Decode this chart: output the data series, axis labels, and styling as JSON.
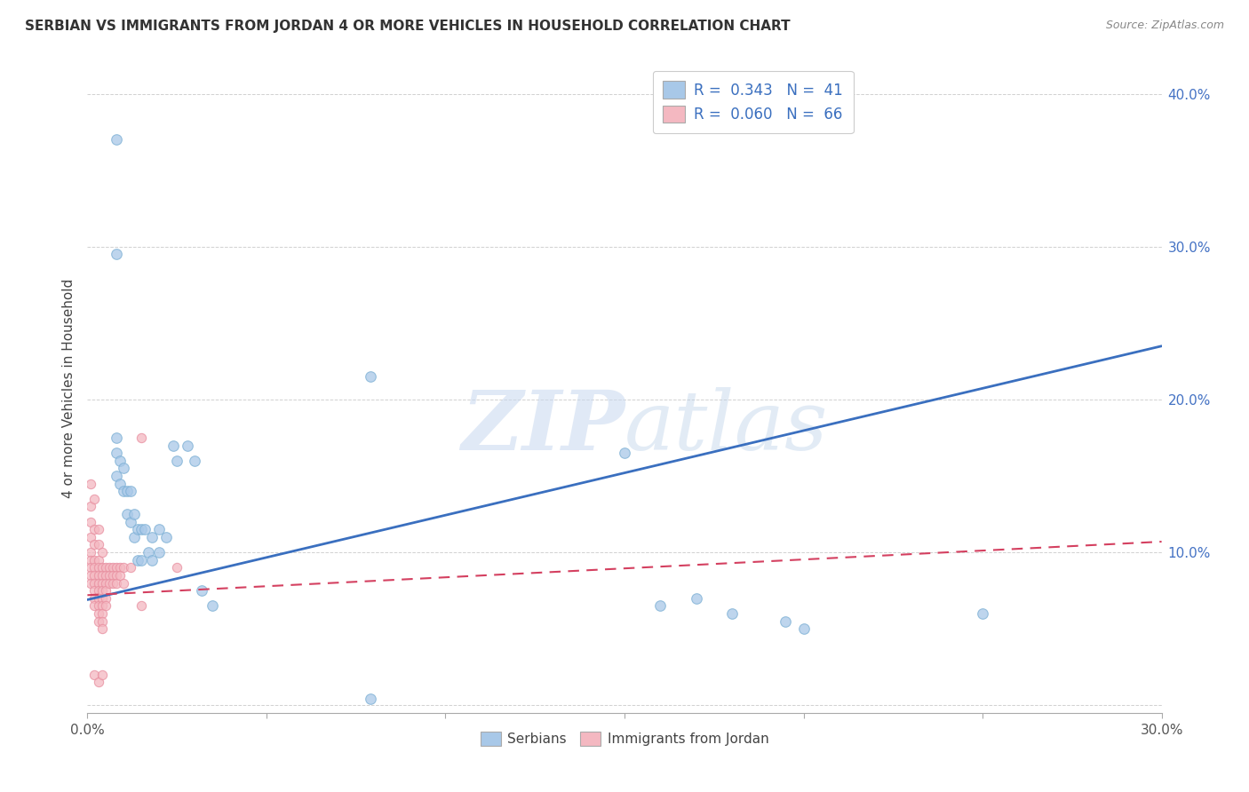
{
  "title": "SERBIAN VS IMMIGRANTS FROM JORDAN 4 OR MORE VEHICLES IN HOUSEHOLD CORRELATION CHART",
  "source": "Source: ZipAtlas.com",
  "ylabel": "4 or more Vehicles in Household",
  "xlim": [
    0.0,
    0.3
  ],
  "ylim": [
    -0.005,
    0.42
  ],
  "legend_serbian_R": "0.343",
  "legend_serbian_N": "41",
  "legend_jordan_R": "0.060",
  "legend_jordan_N": "66",
  "serbian_color": "#a8c8e8",
  "serbian_edge_color": "#7bafd4",
  "jordan_color": "#f4b8c1",
  "jordan_edge_color": "#e88fa0",
  "trendline_serbian_color": "#3a6fbf",
  "trendline_jordan_color": "#d44060",
  "watermark_zip": "ZIP",
  "watermark_atlas": "atlas",
  "serbian_x": [
    0.008,
    0.008,
    0.008,
    0.008,
    0.008,
    0.009,
    0.009,
    0.01,
    0.01,
    0.011,
    0.011,
    0.012,
    0.012,
    0.013,
    0.013,
    0.014,
    0.014,
    0.015,
    0.015,
    0.016,
    0.017,
    0.018,
    0.018,
    0.02,
    0.02,
    0.022,
    0.024,
    0.025,
    0.028,
    0.03,
    0.032,
    0.035,
    0.15,
    0.16,
    0.17,
    0.18,
    0.195,
    0.2,
    0.25,
    0.079,
    0.079
  ],
  "serbian_y": [
    0.37,
    0.295,
    0.15,
    0.175,
    0.165,
    0.16,
    0.145,
    0.155,
    0.14,
    0.14,
    0.125,
    0.14,
    0.12,
    0.125,
    0.11,
    0.115,
    0.095,
    0.115,
    0.095,
    0.115,
    0.1,
    0.11,
    0.095,
    0.115,
    0.1,
    0.11,
    0.17,
    0.16,
    0.17,
    0.16,
    0.075,
    0.065,
    0.165,
    0.065,
    0.07,
    0.06,
    0.055,
    0.05,
    0.06,
    0.215,
    0.004
  ],
  "jordan_x": [
    0.001,
    0.001,
    0.001,
    0.001,
    0.001,
    0.001,
    0.001,
    0.001,
    0.001,
    0.002,
    0.002,
    0.002,
    0.002,
    0.002,
    0.002,
    0.002,
    0.002,
    0.002,
    0.002,
    0.003,
    0.003,
    0.003,
    0.003,
    0.003,
    0.003,
    0.003,
    0.003,
    0.003,
    0.003,
    0.003,
    0.004,
    0.004,
    0.004,
    0.004,
    0.004,
    0.004,
    0.004,
    0.004,
    0.004,
    0.004,
    0.005,
    0.005,
    0.005,
    0.005,
    0.005,
    0.005,
    0.006,
    0.006,
    0.006,
    0.007,
    0.007,
    0.007,
    0.008,
    0.008,
    0.008,
    0.009,
    0.009,
    0.01,
    0.01,
    0.012,
    0.015,
    0.002,
    0.003,
    0.004,
    0.015,
    0.025
  ],
  "jordan_y": [
    0.145,
    0.13,
    0.12,
    0.11,
    0.1,
    0.095,
    0.09,
    0.085,
    0.08,
    0.135,
    0.115,
    0.105,
    0.095,
    0.09,
    0.085,
    0.08,
    0.075,
    0.07,
    0.065,
    0.115,
    0.105,
    0.095,
    0.09,
    0.085,
    0.08,
    0.075,
    0.07,
    0.065,
    0.06,
    0.055,
    0.1,
    0.09,
    0.085,
    0.08,
    0.075,
    0.07,
    0.065,
    0.06,
    0.055,
    0.05,
    0.09,
    0.085,
    0.08,
    0.075,
    0.07,
    0.065,
    0.09,
    0.085,
    0.08,
    0.09,
    0.085,
    0.08,
    0.09,
    0.085,
    0.08,
    0.09,
    0.085,
    0.09,
    0.08,
    0.09,
    0.175,
    0.02,
    0.015,
    0.02,
    0.065,
    0.09
  ],
  "trendline_serbian_x0": 0.0,
  "trendline_serbian_y0": 0.069,
  "trendline_serbian_x1": 0.3,
  "trendline_serbian_y1": 0.235,
  "trendline_jordan_x0": 0.0,
  "trendline_jordan_y0": 0.072,
  "trendline_jordan_x1": 0.3,
  "trendline_jordan_y1": 0.107
}
